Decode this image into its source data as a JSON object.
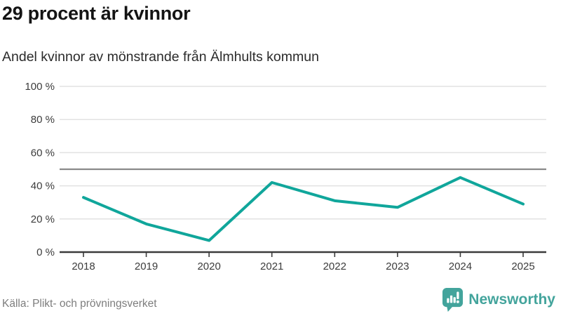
{
  "header": {
    "title": "29 procent är kvinnor",
    "subtitle": "Andel kvinnor av mönstrande från Älmhults kommun"
  },
  "footer": {
    "source": "Källa: Plikt- och prövningsverket",
    "brand": "Newsworthy"
  },
  "colors": {
    "line": "#10a69b",
    "reference_line": "#8a8a8a",
    "axis": "#3b3b3b",
    "gridline": "#e2e2e2",
    "tick_label": "#3c3c3c",
    "brand": "#43a49c",
    "title_text": "#141414",
    "source_text": "#7d7d7d"
  },
  "chart_data": {
    "type": "line",
    "title": "29 procent är kvinnor",
    "subtitle": "Andel kvinnor av mönstrande från Älmhults kommun",
    "source": "Källa: Plikt- och prövningsverket",
    "categories": [
      "2018",
      "2019",
      "2020",
      "2021",
      "2022",
      "2023",
      "2024",
      "2025"
    ],
    "series": [
      {
        "name": "Andel kvinnor",
        "values": [
          33,
          17,
          7,
          42,
          31,
          27,
          45,
          29
        ]
      }
    ],
    "unit": "%",
    "xlabel": "",
    "ylabel": "",
    "ylim": [
      0,
      100
    ],
    "y_ticks": [
      {
        "value": 0,
        "label": "0 %"
      },
      {
        "value": 20,
        "label": "20 %"
      },
      {
        "value": 40,
        "label": "40 %"
      },
      {
        "value": 60,
        "label": "60 %"
      },
      {
        "value": 80,
        "label": "80 %"
      },
      {
        "value": 100,
        "label": "100 %"
      }
    ],
    "reference_line": 50,
    "grid": true,
    "legend_position": "none"
  }
}
